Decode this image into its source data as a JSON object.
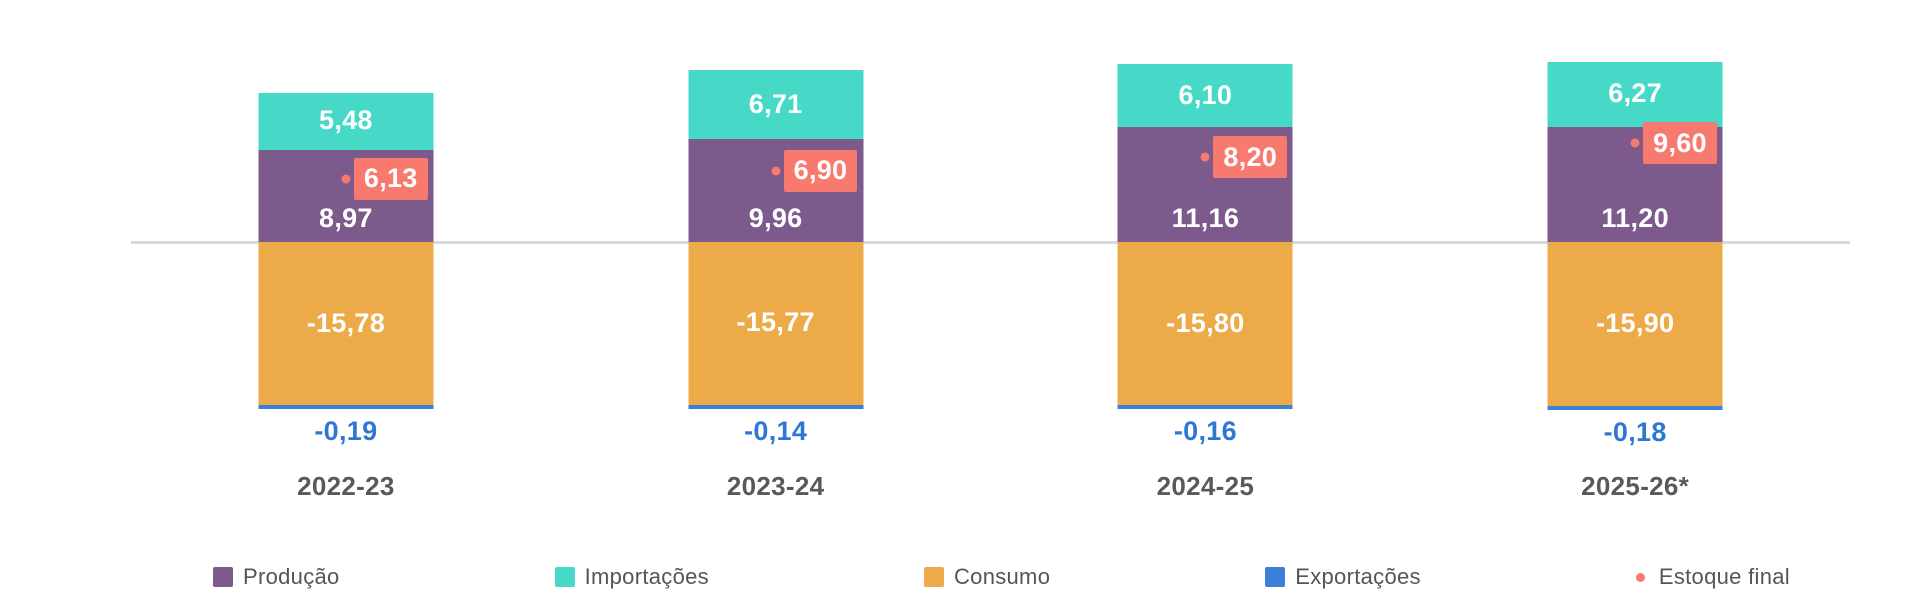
{
  "chart_data": {
    "type": "bar",
    "stacked": true,
    "orientation": "vertical",
    "categories": [
      "2022-23",
      "2023-24",
      "2024-25",
      "2025-26*"
    ],
    "series": [
      {
        "name": "Produção",
        "role": "positive-stack",
        "color": "#7d5a8c",
        "values": [
          8.97,
          9.96,
          11.16,
          11.2
        ]
      },
      {
        "name": "Importações",
        "role": "positive-stack",
        "color": "#47d9c7",
        "values": [
          5.48,
          6.71,
          6.1,
          6.27
        ]
      },
      {
        "name": "Consumo",
        "role": "negative-stack",
        "color": "#ecaa49",
        "values": [
          -15.78,
          -15.77,
          -15.8,
          -15.9
        ]
      },
      {
        "name": "Exportações",
        "role": "negative-stack",
        "color": "#3b80d8",
        "values": [
          -0.19,
          -0.14,
          -0.16,
          -0.18
        ]
      },
      {
        "name": "Estoque final",
        "role": "point",
        "color": "#f8796e",
        "values": [
          6.13,
          6.9,
          8.2,
          9.6
        ]
      }
    ],
    "value_label_decimals": 2,
    "decimal_separator": ",",
    "negative_value_label_color": "#2e78d3",
    "category_label_color": "#595959",
    "zero_line_color": "#d9d9d9",
    "grid": false,
    "y_axis_visible": false,
    "legend_position": "bottom",
    "title": "",
    "xlabel": "",
    "ylabel": ""
  }
}
